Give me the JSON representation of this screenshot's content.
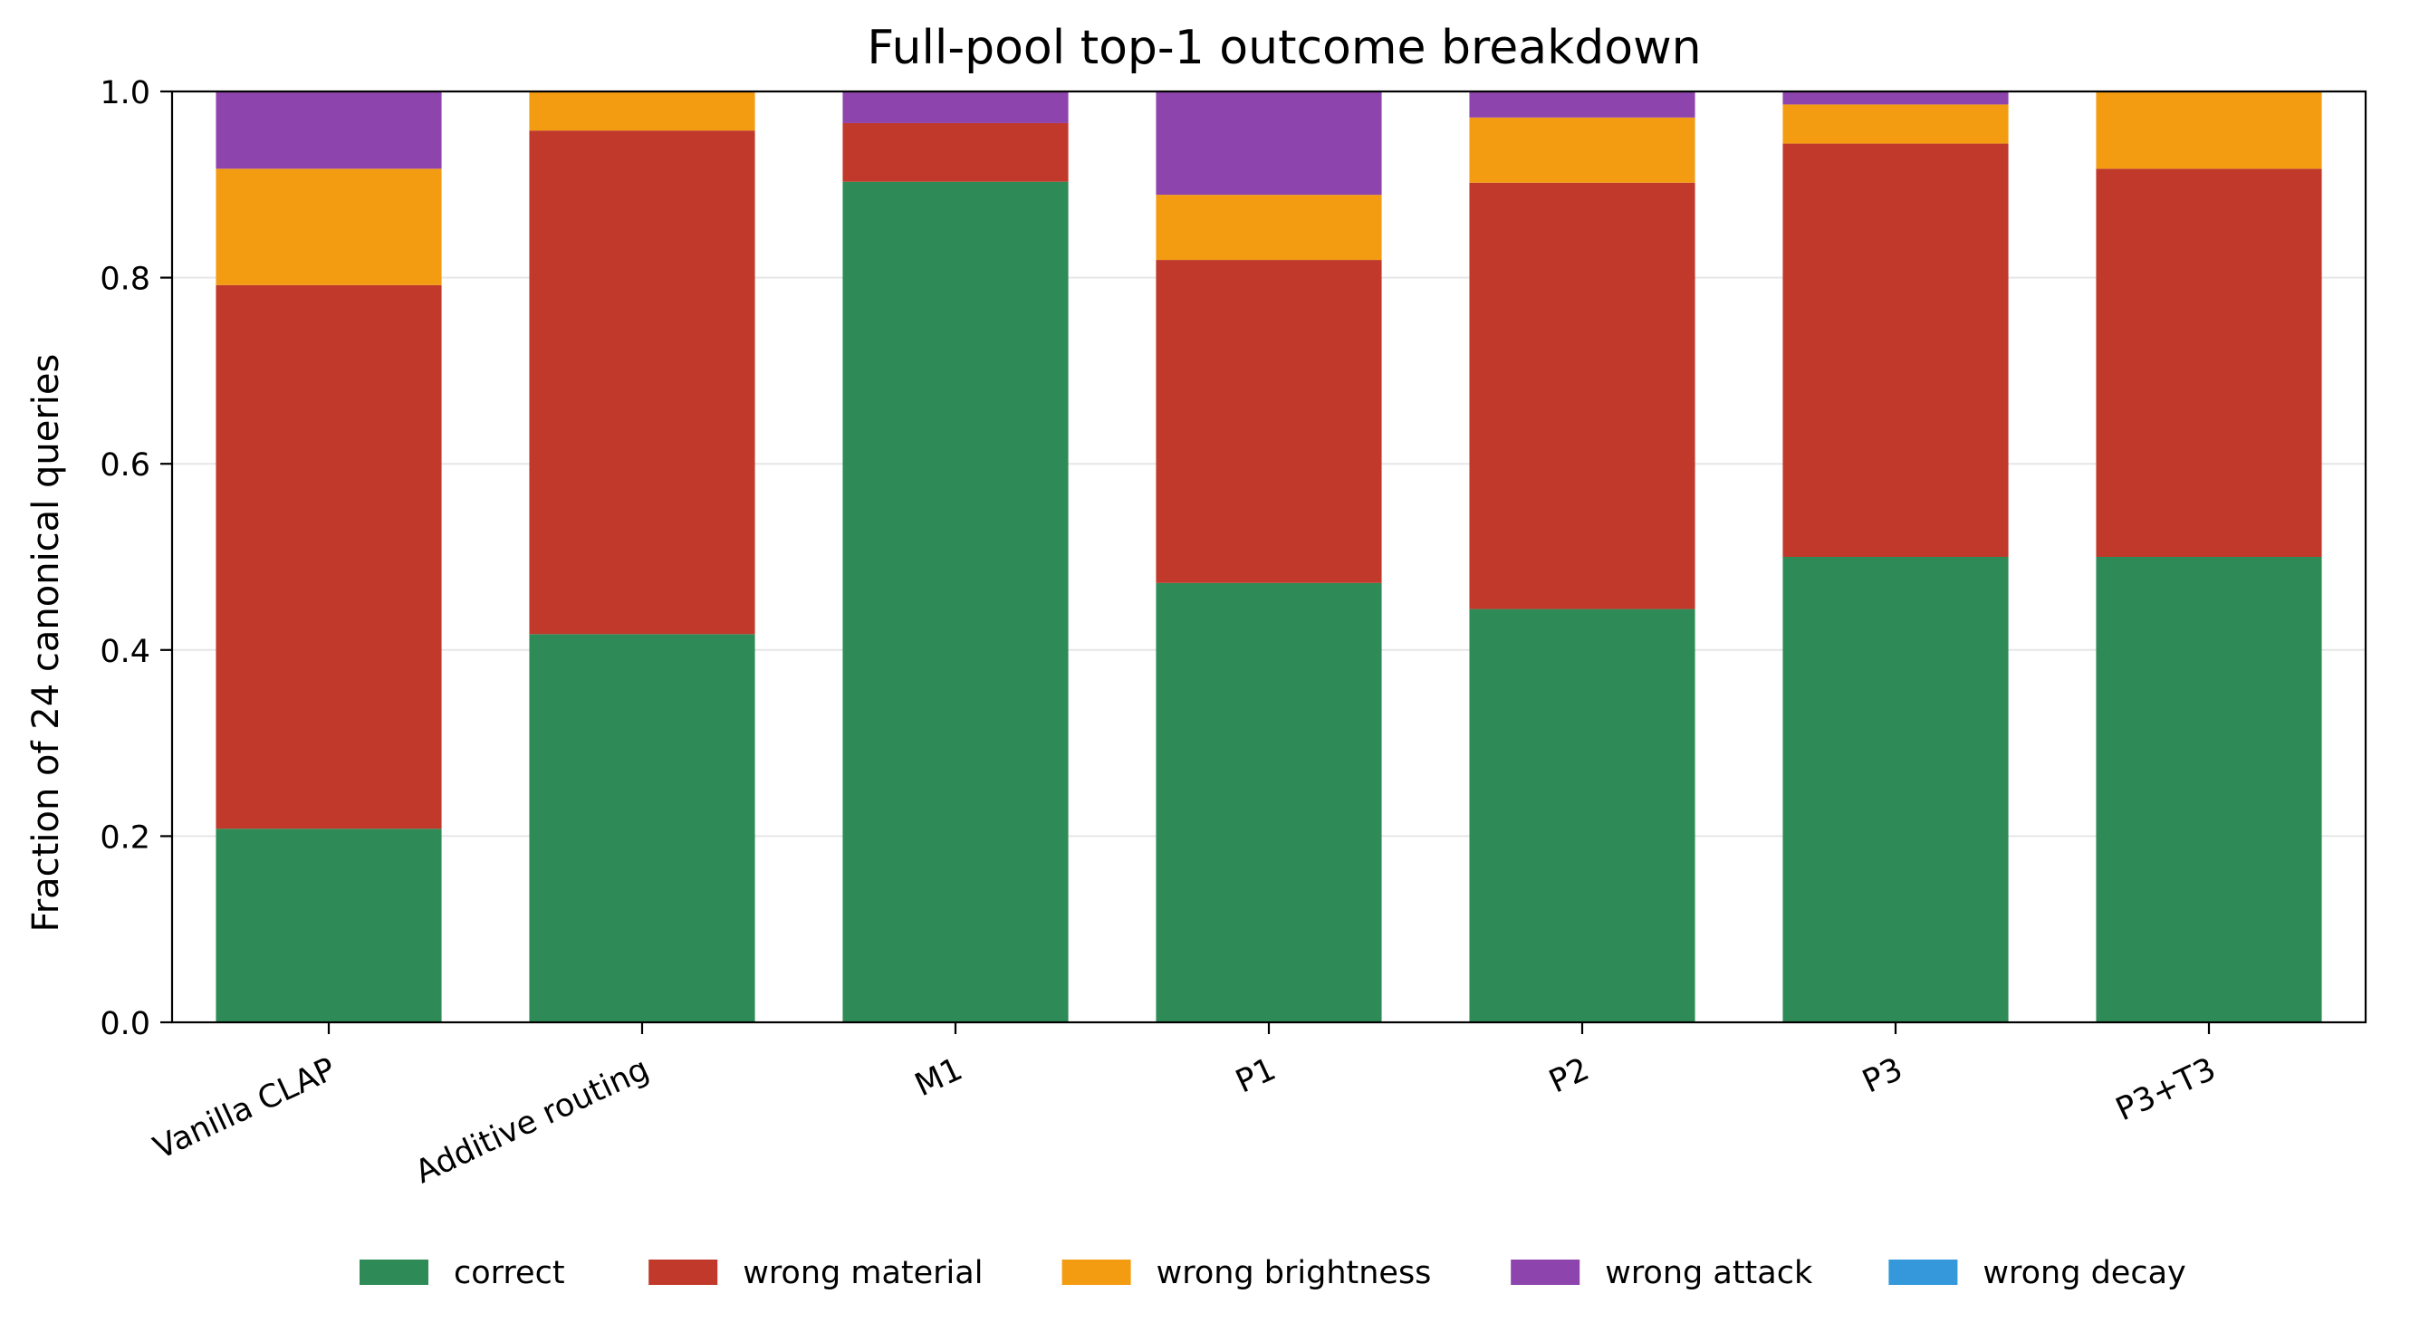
{
  "chart_data": {
    "type": "bar",
    "stacked": true,
    "title": "Full-pool top-1 outcome breakdown",
    "xlabel": "",
    "ylabel": "Fraction of 24 canonical queries",
    "ylim": [
      0,
      1.0
    ],
    "yticks": [
      "0.0",
      "0.2",
      "0.4",
      "0.6",
      "0.8",
      "1.0"
    ],
    "ytick_values": [
      0,
      0.2,
      0.4,
      0.6,
      0.8,
      1.0
    ],
    "grid": "horizontal",
    "legend_placement": "bottom-center",
    "categories": [
      "Vanilla CLAP",
      "Additive routing",
      "M1",
      "P1",
      "P2",
      "P3",
      "P3+T3"
    ],
    "series": [
      {
        "name": "correct",
        "color": "#2e8b57",
        "values": [
          0.208,
          0.417,
          0.903,
          0.472,
          0.444,
          0.5,
          0.5
        ]
      },
      {
        "name": "wrong material",
        "color": "#c0392b",
        "values": [
          0.584,
          0.541,
          0.063,
          0.347,
          0.458,
          0.444,
          0.417
        ]
      },
      {
        "name": "wrong brightness",
        "color": "#f39c12",
        "values": [
          0.125,
          0.042,
          0.0,
          0.07,
          0.07,
          0.042,
          0.083
        ]
      },
      {
        "name": "wrong attack",
        "color": "#8e44ad",
        "values": [
          0.083,
          0.0,
          0.034,
          0.111,
          0.028,
          0.014,
          0.0
        ]
      },
      {
        "name": "wrong decay",
        "color": "#3498db",
        "values": [
          0,
          0,
          0,
          0,
          0,
          0,
          0
        ]
      }
    ]
  }
}
